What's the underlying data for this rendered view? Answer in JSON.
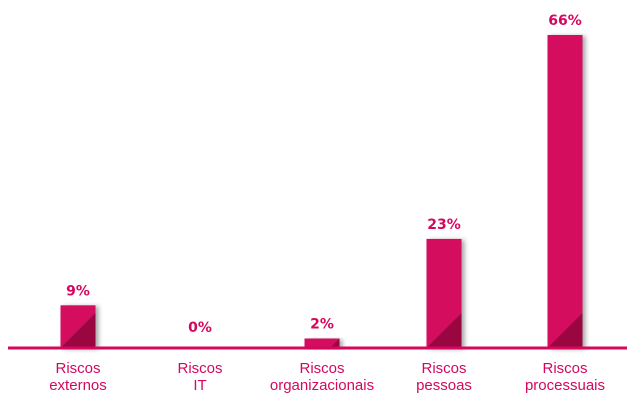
{
  "chart_data": {
    "type": "bar",
    "categories": [
      [
        "Riscos",
        "externos"
      ],
      [
        "Riscos",
        "IT"
      ],
      [
        "Riscos",
        "organizacionais"
      ],
      [
        "Riscos",
        "pessoas"
      ],
      [
        "Riscos",
        "processuais"
      ]
    ],
    "values": [
      9,
      0,
      2,
      23,
      66
    ],
    "value_labels": [
      "9%",
      "0%",
      "2%",
      "23%",
      "66%"
    ],
    "ylim": [
      0,
      66
    ],
    "grid": false,
    "legend": "none",
    "colors": {
      "bar": "#d4085f",
      "bar_fold": "#9a0640",
      "axis": "#d4085f",
      "text": "#d4085f"
    }
  }
}
